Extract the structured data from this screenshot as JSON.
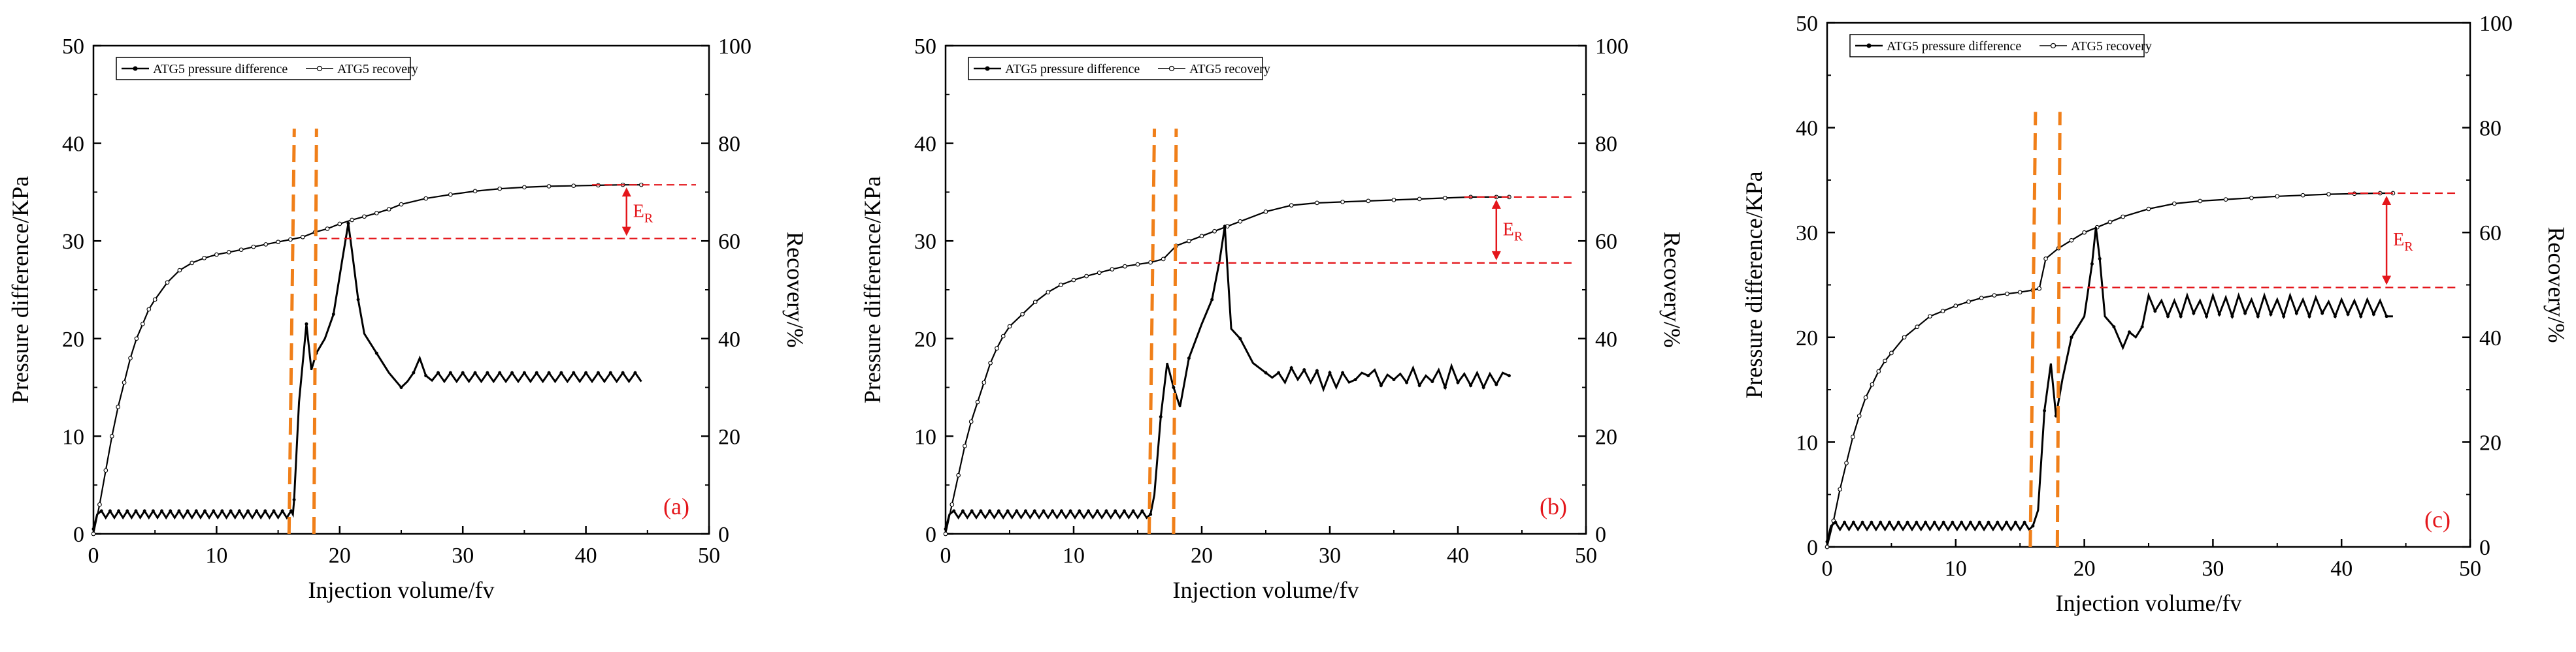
{
  "chart_data": [
    {
      "type": "line",
      "panel_label": "(a)",
      "xlabel": "Injection volume/fv",
      "ylabel": "Pressure difference/KPa",
      "ylabel_right": "Recovery/%",
      "xlim": [
        0,
        50
      ],
      "ylim": [
        0,
        50
      ],
      "ylim_right": [
        0,
        100
      ],
      "xticks": [
        "0",
        "10",
        "20",
        "30",
        "40",
        "50"
      ],
      "yticks": [
        "0",
        "10",
        "20",
        "30",
        "40",
        "50"
      ],
      "yticks_right": [
        "0",
        "20",
        "40",
        "60",
        "80",
        "100"
      ],
      "legend": [
        "ATG5 pressure difference",
        "ATG5 recovery"
      ],
      "annotation": "E",
      "annotation_sub": "R",
      "orange_lines_x": [
        16.1,
        17.8
      ],
      "red_lines_recovery": [
        60.5,
        71.5
      ],
      "er_arrow_x": 43.3,
      "series": [
        {
          "name": "ATG5 pressure difference",
          "x": [
            0,
            0.3,
            16.2,
            16.3,
            16.7,
            17.3,
            17.7,
            18.1,
            18.8,
            19.5,
            20.2,
            20.7,
            21.0,
            21.5,
            22.0,
            23.0,
            24.0,
            25.0,
            25.5,
            26.0,
            26.5,
            27.0,
            27.5,
            28,
            28.5,
            29,
            29.5,
            30,
            30.5,
            31,
            31.5,
            32,
            32.5,
            33,
            33.5,
            34,
            34.5,
            35,
            35.5,
            36,
            36.5,
            37,
            37.5,
            38,
            38.5,
            39,
            39.5,
            40,
            40.5,
            41,
            41.5,
            42,
            42.5,
            43,
            43.5,
            44,
            44.5
          ],
          "values": [
            0.5,
            2.0,
            2.0,
            3.5,
            13.5,
            21.5,
            16.8,
            18.5,
            20.0,
            22.5,
            28.0,
            31.8,
            29.0,
            24.0,
            20.5,
            18.5,
            16.5,
            15.0,
            15.6,
            16.5,
            18.0,
            16.2,
            15.7,
            16.5,
            15.6,
            16.5,
            15.6,
            16.5,
            15.6,
            16.5,
            15.6,
            16.5,
            15.6,
            16.5,
            15.6,
            16.5,
            15.6,
            16.5,
            15.6,
            16.5,
            15.6,
            16.5,
            15.6,
            16.5,
            15.6,
            16.5,
            15.6,
            16.5,
            15.6,
            16.5,
            15.6,
            16.5,
            15.6,
            16.5,
            15.6,
            16.5,
            15.6
          ],
          "noise_range": [
            0.3,
            16.2
          ],
          "noise_amplitude": 0.35
        },
        {
          "name": "ATG5 recovery",
          "x": [
            0,
            0.5,
            1,
            1.5,
            2,
            2.5,
            3,
            3.5,
            4,
            4.5,
            5,
            6,
            7,
            8,
            9,
            10,
            11,
            12,
            13,
            14,
            15,
            16,
            17,
            18,
            19,
            20,
            21,
            22,
            23,
            24,
            25,
            27,
            29,
            31,
            33,
            35,
            37,
            39,
            41,
            43,
            44.5
          ],
          "values": [
            0,
            6,
            13,
            20,
            26,
            31,
            36,
            40,
            43,
            46,
            48,
            51.5,
            54,
            55.5,
            56.5,
            57.2,
            57.7,
            58.2,
            58.8,
            59.3,
            59.8,
            60.3,
            60.8,
            61.8,
            62.5,
            63.5,
            64.3,
            65.0,
            65.7,
            66.5,
            67.5,
            68.7,
            69.5,
            70.2,
            70.7,
            71.0,
            71.2,
            71.3,
            71.4,
            71.5,
            71.5
          ]
        }
      ]
    },
    {
      "type": "line",
      "panel_label": "(b)",
      "xlabel": "Injection volume/fv",
      "ylabel": "Pressure difference/KPa",
      "ylabel_right": "Recovery/%",
      "xlim": [
        0,
        50
      ],
      "ylim": [
        0,
        50
      ],
      "ylim_right": [
        0,
        100
      ],
      "xticks": [
        "0",
        "10",
        "20",
        "30",
        "40",
        "50"
      ],
      "yticks": [
        "0",
        "10",
        "20",
        "30",
        "40",
        "50"
      ],
      "yticks_right": [
        "0",
        "20",
        "40",
        "60",
        "80",
        "100"
      ],
      "legend": [
        "ATG5 pressure difference",
        "ATG5 recovery"
      ],
      "annotation": "E",
      "annotation_sub": "R",
      "orange_lines_x": [
        16.1,
        17.7
      ],
      "red_lines_recovery": [
        55.5,
        69.0
      ],
      "er_arrow_x": 43.0,
      "series": [
        {
          "name": "ATG5 pressure difference",
          "x": [
            0,
            0.3,
            16.0,
            16.3,
            16.8,
            17.3,
            17.8,
            18.3,
            19.0,
            20.0,
            20.8,
            21.4,
            21.8,
            22.3,
            23.0,
            24.0,
            25.0,
            25.5,
            26,
            26.5,
            27,
            27.5,
            28,
            28.5,
            29,
            29.5,
            30,
            30.5,
            31,
            31.5,
            32,
            32.5,
            33,
            33.5,
            34,
            34.5,
            35,
            35.5,
            36,
            36.5,
            37,
            37.5,
            38,
            38.5,
            39,
            39.5,
            40,
            40.5,
            41,
            41.5,
            42,
            42.5,
            43,
            43.5,
            44
          ],
          "values": [
            0.5,
            2.0,
            2.0,
            4.0,
            12.0,
            17.5,
            15.0,
            13.0,
            18.0,
            21.5,
            24.0,
            28.0,
            31.5,
            21.0,
            20.0,
            17.5,
            16.5,
            16.0,
            16.5,
            15.5,
            17.0,
            15.8,
            16.8,
            15.5,
            16.7,
            14.8,
            16.5,
            15.0,
            16.5,
            15.5,
            15.8,
            16.5,
            16.2,
            16.8,
            15.2,
            16.3,
            15.8,
            16.4,
            15.5,
            17.0,
            15.2,
            16.2,
            15.6,
            16.8,
            15.0,
            17.2,
            15.5,
            16.4,
            15.2,
            16.5,
            15.0,
            16.4,
            15.3,
            16.5,
            16.2
          ],
          "noise_range": [
            0.3,
            16.0
          ],
          "noise_amplitude": 0.35
        },
        {
          "name": "ATG5 recovery",
          "x": [
            0,
            0.5,
            1,
            1.5,
            2,
            2.5,
            3,
            3.5,
            4,
            4.5,
            5,
            6,
            7,
            8,
            9,
            10,
            11,
            12,
            13,
            14,
            15,
            16,
            17,
            18,
            19,
            20,
            21,
            22,
            23,
            25,
            27,
            29,
            31,
            33,
            35,
            37,
            39,
            41,
            43,
            44
          ],
          "values": [
            0,
            6,
            12,
            18,
            23,
            27,
            31,
            35,
            38,
            40.5,
            42.5,
            45,
            47.5,
            49.5,
            51,
            52,
            52.8,
            53.5,
            54.2,
            54.8,
            55.2,
            55.6,
            56.3,
            59.0,
            60.0,
            61.0,
            62.0,
            63.0,
            64.0,
            66.0,
            67.3,
            67.8,
            68.0,
            68.2,
            68.4,
            68.6,
            68.8,
            69.0,
            69.0,
            69.0
          ]
        }
      ]
    },
    {
      "type": "line",
      "panel_label": "(c)",
      "xlabel": "Injection volume/fv",
      "ylabel": "Pressure difference/KPa",
      "ylabel_right": "Recovery/%",
      "xlim": [
        0,
        50
      ],
      "ylim": [
        0,
        50
      ],
      "ylim_right": [
        0,
        100
      ],
      "xticks": [
        "0",
        "10",
        "20",
        "30",
        "40",
        "50"
      ],
      "yticks": [
        "0",
        "10",
        "20",
        "30",
        "40",
        "50"
      ],
      "yticks_right": [
        "0",
        "20",
        "40",
        "60",
        "80",
        "100"
      ],
      "legend": [
        "ATG5 pressure difference",
        "ATG5 recovery"
      ],
      "annotation": "E",
      "annotation_sub": "R",
      "orange_lines_x": [
        16.0,
        17.8
      ],
      "red_lines_recovery": [
        49.5,
        67.5
      ],
      "er_arrow_x": 43.5,
      "series": [
        {
          "name": "ATG5 pressure difference",
          "x": [
            0,
            0.3,
            16.0,
            16.4,
            16.9,
            17.4,
            17.8,
            18.3,
            19.0,
            20.0,
            20.6,
            20.9,
            21.2,
            21.6,
            22.3,
            23.0,
            23.5,
            24.0,
            24.5,
            25.0,
            25.5,
            26,
            26.5,
            27,
            27.5,
            28,
            28.5,
            29,
            29.5,
            30,
            30.5,
            31,
            31.5,
            32,
            32.5,
            33,
            33.5,
            34,
            34.5,
            35,
            35.5,
            36,
            36.5,
            37,
            37.5,
            38,
            38.5,
            39,
            39.5,
            40,
            40.5,
            41,
            41.5,
            42,
            42.5,
            43,
            43.5,
            44
          ],
          "values": [
            0.5,
            2.0,
            2.0,
            3.5,
            13.0,
            17.5,
            12.5,
            16.0,
            20.0,
            22.0,
            27.0,
            30.5,
            27.5,
            22.0,
            21.0,
            19.0,
            20.5,
            20.0,
            21.0,
            24.0,
            22.5,
            23.5,
            22.0,
            23.5,
            22.0,
            24.0,
            22.3,
            23.5,
            22.0,
            24.0,
            22.2,
            23.8,
            22.0,
            24.0,
            22.3,
            23.6,
            22.0,
            24.0,
            22.2,
            23.6,
            22.0,
            24.0,
            22.3,
            23.6,
            22.0,
            23.8,
            22.3,
            23.4,
            22.0,
            23.6,
            22.2,
            23.5,
            22.0,
            23.6,
            22.2,
            23.5,
            22.0,
            22.0
          ],
          "noise_range": [
            0.3,
            16.0
          ],
          "noise_amplitude": 0.35
        },
        {
          "name": "ATG5 recovery",
          "x": [
            0,
            0.5,
            1,
            1.5,
            2,
            2.5,
            3,
            3.5,
            4,
            4.5,
            5,
            6,
            7,
            8,
            9,
            10,
            11,
            12,
            13,
            14,
            15,
            16,
            16.5,
            17,
            18,
            19,
            20,
            21,
            22,
            23,
            25,
            27,
            29,
            31,
            33,
            35,
            37,
            39,
            41,
            43,
            44
          ],
          "values": [
            0,
            5,
            11,
            16,
            21,
            25,
            28.5,
            31,
            33.5,
            35.5,
            37,
            40,
            42,
            44,
            45,
            46,
            46.8,
            47.5,
            48,
            48.3,
            48.6,
            49.0,
            49.3,
            55.0,
            57.0,
            58.5,
            60.0,
            61.0,
            62.0,
            63.0,
            64.5,
            65.5,
            66.0,
            66.3,
            66.6,
            66.9,
            67.1,
            67.3,
            67.4,
            67.5,
            67.5
          ]
        }
      ]
    }
  ]
}
